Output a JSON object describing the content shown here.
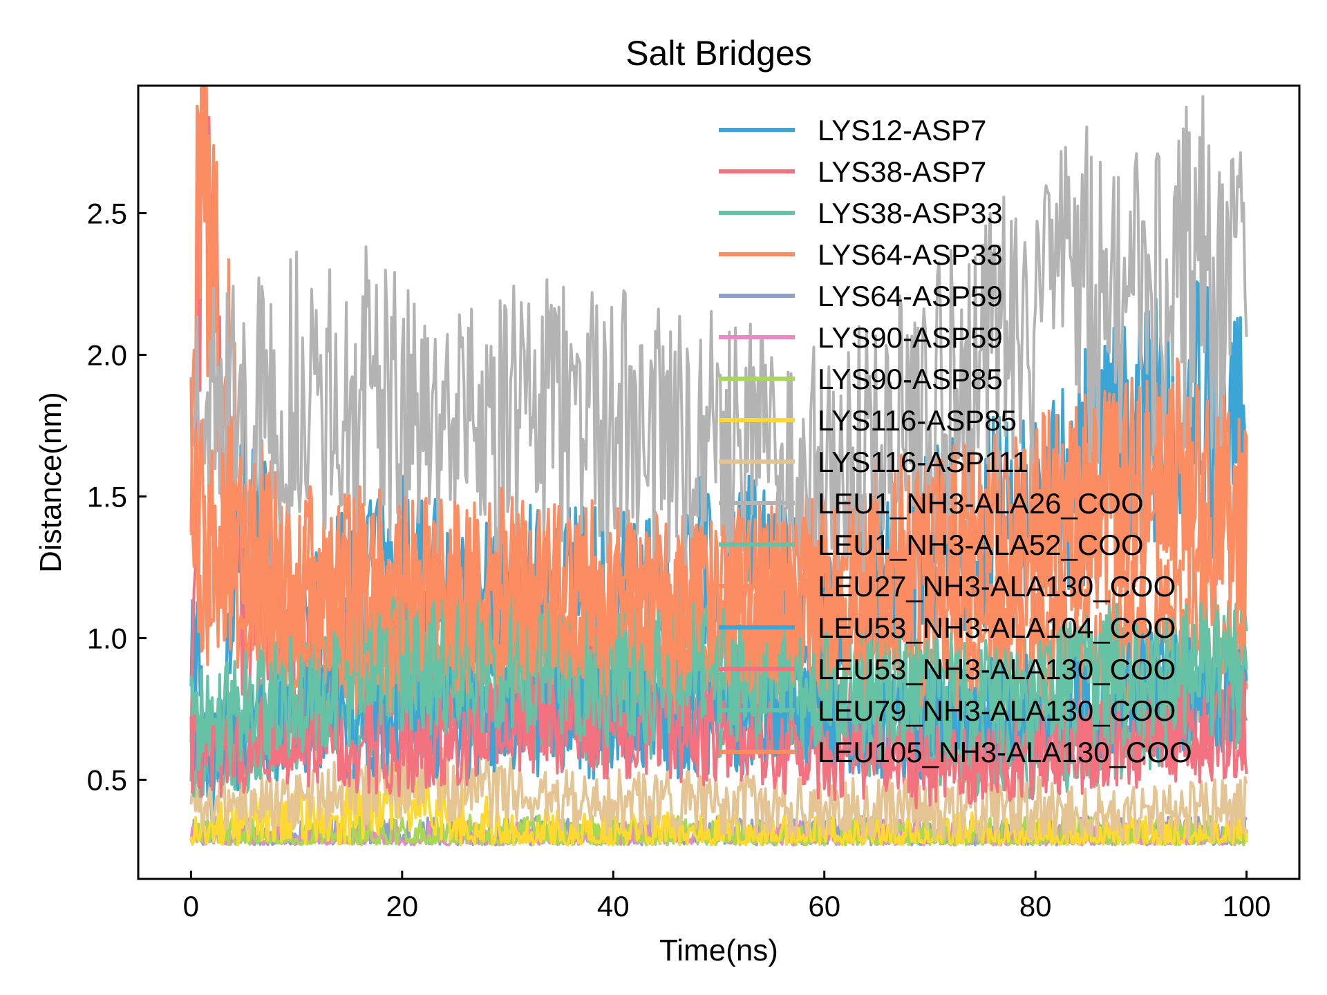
{
  "chart_data": {
    "type": "line",
    "title": "Salt Bridges",
    "xlabel": "Time(ns)",
    "ylabel": "Distance(nm)",
    "xlim": [
      -5,
      105
    ],
    "ylim": [
      0.15,
      2.95
    ],
    "x_ticks": [
      0,
      20,
      40,
      60,
      80,
      100
    ],
    "x_tick_labels": [
      "0",
      "20",
      "40",
      "60",
      "80",
      "100"
    ],
    "y_ticks": [
      0.5,
      1.0,
      1.5,
      2.0,
      2.5
    ],
    "y_tick_labels": [
      "0.5",
      "1.0",
      "1.5",
      "2.0",
      "2.5"
    ],
    "grid": false,
    "legend_position": "upper-right",
    "series": [
      {
        "name": "LYS12-ASP7",
        "color": "#3ba6d5",
        "values": [
          [
            0,
            1.1
          ],
          [
            2,
            0.35
          ],
          [
            5,
            1.5
          ],
          [
            10,
            1.0
          ],
          [
            15,
            1.2
          ],
          [
            20,
            1.3
          ],
          [
            25,
            1.1
          ],
          [
            30,
            1.2
          ],
          [
            35,
            1.15
          ],
          [
            40,
            1.2
          ],
          [
            45,
            1.1
          ],
          [
            50,
            1.3
          ],
          [
            55,
            1.2
          ],
          [
            60,
            1.1
          ],
          [
            65,
            1.2
          ],
          [
            70,
            1.3
          ],
          [
            75,
            1.4
          ],
          [
            80,
            1.4
          ],
          [
            85,
            1.6
          ],
          [
            90,
            1.7
          ],
          [
            95,
            1.8
          ],
          [
            100,
            1.75
          ]
        ]
      },
      {
        "name": "LYS38-ASP7",
        "color": "#f4727f",
        "values": [
          [
            0,
            0.8
          ],
          [
            1,
            2.7
          ],
          [
            5,
            1.0
          ],
          [
            10,
            0.9
          ],
          [
            15,
            0.9
          ],
          [
            20,
            0.8
          ],
          [
            25,
            0.75
          ],
          [
            30,
            0.8
          ],
          [
            35,
            0.8
          ],
          [
            40,
            0.9
          ],
          [
            45,
            0.8
          ],
          [
            50,
            0.8
          ],
          [
            55,
            0.75
          ],
          [
            60,
            0.7
          ],
          [
            65,
            0.65
          ],
          [
            70,
            0.6
          ],
          [
            75,
            0.65
          ],
          [
            80,
            0.6
          ],
          [
            85,
            0.65
          ],
          [
            90,
            0.7
          ],
          [
            95,
            0.7
          ],
          [
            100,
            0.7
          ]
        ]
      },
      {
        "name": "LYS38-ASP33",
        "color": "#66c2a5",
        "values": [
          [
            0,
            0.6
          ],
          [
            5,
            0.6
          ],
          [
            10,
            0.8
          ],
          [
            15,
            0.9
          ],
          [
            20,
            0.9
          ],
          [
            25,
            0.8
          ],
          [
            30,
            0.85
          ],
          [
            35,
            0.9
          ],
          [
            40,
            0.8
          ],
          [
            45,
            0.85
          ],
          [
            50,
            0.9
          ],
          [
            55,
            0.8
          ],
          [
            60,
            0.7
          ],
          [
            65,
            0.7
          ],
          [
            70,
            0.6
          ],
          [
            75,
            0.6
          ],
          [
            80,
            0.6
          ],
          [
            85,
            0.65
          ],
          [
            90,
            0.7
          ],
          [
            95,
            0.8
          ],
          [
            100,
            0.8
          ]
        ]
      },
      {
        "name": "LYS64-ASP33",
        "color": "#fc8d62",
        "values": [
          [
            0,
            1.6
          ],
          [
            1,
            2.85
          ],
          [
            3,
            2.0
          ],
          [
            5,
            1.4
          ],
          [
            10,
            1.2
          ],
          [
            15,
            1.2
          ],
          [
            20,
            1.2
          ],
          [
            25,
            1.1
          ],
          [
            30,
            1.2
          ],
          [
            35,
            1.2
          ],
          [
            40,
            1.15
          ],
          [
            45,
            1.15
          ],
          [
            50,
            1.1
          ],
          [
            55,
            1.2
          ],
          [
            60,
            1.2
          ],
          [
            65,
            1.3
          ],
          [
            70,
            1.3
          ],
          [
            75,
            1.3
          ],
          [
            80,
            1.4
          ],
          [
            85,
            1.5
          ],
          [
            90,
            1.5
          ],
          [
            95,
            1.6
          ],
          [
            100,
            1.5
          ]
        ]
      },
      {
        "name": "LYS64-ASP59",
        "color": "#8da0cb",
        "values": [
          [
            0,
            0.29
          ],
          [
            100,
            0.29
          ]
        ]
      },
      {
        "name": "LYS90-ASP59",
        "color": "#e78ac3",
        "values": [
          [
            0,
            0.28
          ],
          [
            100,
            0.28
          ]
        ]
      },
      {
        "name": "LYS90-ASP85",
        "color": "#a6d854",
        "values": [
          [
            0,
            0.29
          ],
          [
            20,
            0.3
          ],
          [
            40,
            0.29
          ],
          [
            60,
            0.29
          ],
          [
            80,
            0.29
          ],
          [
            100,
            0.29
          ]
        ]
      },
      {
        "name": "LYS116-ASP85",
        "color": "#ffd92f",
        "values": [
          [
            0,
            0.3
          ],
          [
            5,
            0.35
          ],
          [
            15,
            0.38
          ],
          [
            20,
            0.45
          ],
          [
            25,
            0.38
          ],
          [
            30,
            0.32
          ],
          [
            40,
            0.3
          ],
          [
            60,
            0.3
          ],
          [
            80,
            0.3
          ],
          [
            100,
            0.3
          ]
        ]
      },
      {
        "name": "LYS116-ASP111",
        "color": "#e5c494",
        "values": [
          [
            0,
            0.4
          ],
          [
            10,
            0.42
          ],
          [
            20,
            0.5
          ],
          [
            30,
            0.45
          ],
          [
            40,
            0.42
          ],
          [
            50,
            0.42
          ],
          [
            60,
            0.4
          ],
          [
            70,
            0.4
          ],
          [
            80,
            0.4
          ],
          [
            90,
            0.38
          ],
          [
            100,
            0.4
          ]
        ]
      },
      {
        "name": "LEU1_NH3-ALA26_COO",
        "color": "#b3b3b3",
        "values": [
          [
            0,
            1.8
          ],
          [
            5,
            1.75
          ],
          [
            10,
            1.85
          ],
          [
            15,
            1.9
          ],
          [
            20,
            1.8
          ],
          [
            25,
            1.75
          ],
          [
            30,
            1.75
          ],
          [
            35,
            1.8
          ],
          [
            40,
            1.75
          ],
          [
            45,
            1.7
          ],
          [
            50,
            1.7
          ],
          [
            55,
            1.65
          ],
          [
            60,
            1.6
          ],
          [
            65,
            1.7
          ],
          [
            70,
            1.8
          ],
          [
            75,
            1.95
          ],
          [
            80,
            2.1
          ],
          [
            85,
            2.2
          ],
          [
            90,
            2.25
          ],
          [
            95,
            2.3
          ],
          [
            100,
            2.3
          ]
        ]
      },
      {
        "name": "LEU1_NH3-ALA52_COO",
        "color": "#66c2a5",
        "values": [
          [
            0,
            0.6
          ],
          [
            10,
            0.7
          ],
          [
            20,
            0.8
          ],
          [
            30,
            0.8
          ],
          [
            40,
            0.75
          ],
          [
            50,
            0.8
          ],
          [
            60,
            0.8
          ],
          [
            70,
            0.75
          ],
          [
            80,
            0.8
          ],
          [
            90,
            0.85
          ],
          [
            100,
            0.9
          ]
        ]
      },
      {
        "name": "LEU27_NH3-ALA130_COO",
        "color": "#fc8d62",
        "values": [
          [
            0,
            1.2
          ],
          [
            10,
            1.0
          ],
          [
            20,
            1.0
          ],
          [
            30,
            1.0
          ],
          [
            40,
            1.0
          ],
          [
            50,
            1.0
          ],
          [
            60,
            1.0
          ],
          [
            70,
            1.0
          ],
          [
            80,
            1.0
          ],
          [
            90,
            1.0
          ],
          [
            100,
            1.0
          ]
        ]
      },
      {
        "name": "LEU53_NH3-ALA104_COO",
        "color": "#3ba6d5",
        "values": [
          [
            0,
            0.6
          ],
          [
            10,
            0.7
          ],
          [
            20,
            0.7
          ],
          [
            30,
            0.7
          ],
          [
            40,
            0.7
          ],
          [
            50,
            0.7
          ],
          [
            60,
            0.7
          ],
          [
            70,
            0.7
          ],
          [
            80,
            0.75
          ],
          [
            90,
            0.8
          ],
          [
            100,
            0.8
          ]
        ]
      },
      {
        "name": "LEU53_NH3-ALA130_COO",
        "color": "#f4727f",
        "values": [
          [
            0,
            0.6
          ],
          [
            10,
            0.65
          ],
          [
            20,
            0.6
          ],
          [
            30,
            0.7
          ],
          [
            40,
            0.7
          ],
          [
            50,
            0.65
          ],
          [
            60,
            0.6
          ],
          [
            70,
            0.55
          ],
          [
            80,
            0.6
          ],
          [
            90,
            0.65
          ],
          [
            100,
            0.7
          ]
        ]
      },
      {
        "name": "LEU79_NH3-ALA130_COO",
        "color": "#66c2a5",
        "values": [
          [
            0,
            0.7
          ],
          [
            10,
            0.8
          ],
          [
            20,
            0.9
          ],
          [
            30,
            0.9
          ],
          [
            40,
            0.85
          ],
          [
            50,
            0.9
          ],
          [
            60,
            0.8
          ],
          [
            70,
            0.8
          ],
          [
            80,
            0.8
          ],
          [
            90,
            0.9
          ],
          [
            100,
            0.9
          ]
        ]
      },
      {
        "name": "LEU105_NH3-ALA130_COO",
        "color": "#fc8d62",
        "values": [
          [
            0,
            1.5
          ],
          [
            5,
            1.3
          ],
          [
            10,
            1.2
          ],
          [
            20,
            1.2
          ],
          [
            30,
            1.2
          ],
          [
            40,
            1.1
          ],
          [
            50,
            1.1
          ],
          [
            60,
            1.2
          ],
          [
            70,
            1.3
          ],
          [
            80,
            1.4
          ],
          [
            90,
            1.5
          ],
          [
            100,
            1.4
          ]
        ]
      }
    ]
  }
}
